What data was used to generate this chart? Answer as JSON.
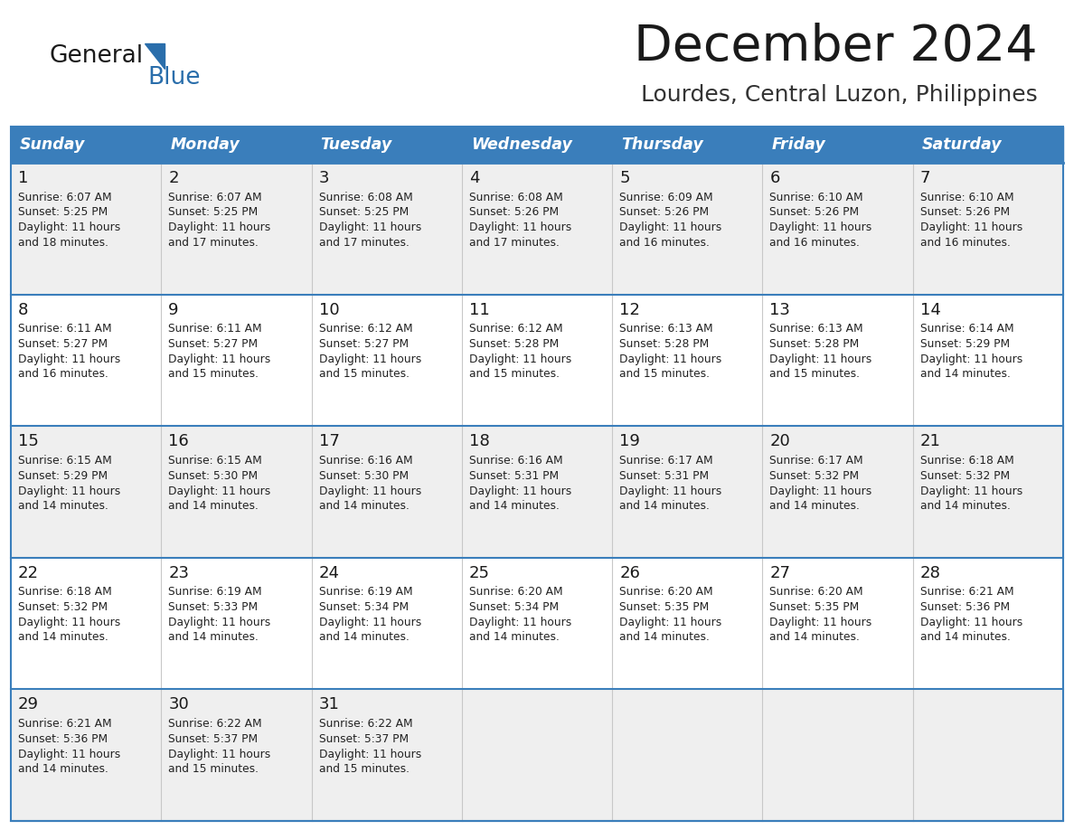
{
  "title": "December 2024",
  "subtitle": "Lourdes, Central Luzon, Philippines",
  "days_of_week": [
    "Sunday",
    "Monday",
    "Tuesday",
    "Wednesday",
    "Thursday",
    "Friday",
    "Saturday"
  ],
  "header_bg": "#3A7EBB",
  "header_text_color": "#FFFFFF",
  "row_bg_odd": "#EFEFEF",
  "row_bg_even": "#FFFFFF",
  "cell_border_color": "#3A7EBB",
  "title_color": "#1a1a1a",
  "subtitle_color": "#333333",
  "logo_general_color": "#1a1a1a",
  "logo_blue_color": "#2A6EAB",
  "calendar": [
    [
      {
        "day": 1,
        "sunrise": "6:07 AM",
        "sunset": "5:25 PM",
        "daylight_min": "18"
      },
      {
        "day": 2,
        "sunrise": "6:07 AM",
        "sunset": "5:25 PM",
        "daylight_min": "17"
      },
      {
        "day": 3,
        "sunrise": "6:08 AM",
        "sunset": "5:25 PM",
        "daylight_min": "17"
      },
      {
        "day": 4,
        "sunrise": "6:08 AM",
        "sunset": "5:26 PM",
        "daylight_min": "17"
      },
      {
        "day": 5,
        "sunrise": "6:09 AM",
        "sunset": "5:26 PM",
        "daylight_min": "16"
      },
      {
        "day": 6,
        "sunrise": "6:10 AM",
        "sunset": "5:26 PM",
        "daylight_min": "16"
      },
      {
        "day": 7,
        "sunrise": "6:10 AM",
        "sunset": "5:26 PM",
        "daylight_min": "16"
      }
    ],
    [
      {
        "day": 8,
        "sunrise": "6:11 AM",
        "sunset": "5:27 PM",
        "daylight_min": "16"
      },
      {
        "day": 9,
        "sunrise": "6:11 AM",
        "sunset": "5:27 PM",
        "daylight_min": "15"
      },
      {
        "day": 10,
        "sunrise": "6:12 AM",
        "sunset": "5:27 PM",
        "daylight_min": "15"
      },
      {
        "day": 11,
        "sunrise": "6:12 AM",
        "sunset": "5:28 PM",
        "daylight_min": "15"
      },
      {
        "day": 12,
        "sunrise": "6:13 AM",
        "sunset": "5:28 PM",
        "daylight_min": "15"
      },
      {
        "day": 13,
        "sunrise": "6:13 AM",
        "sunset": "5:28 PM",
        "daylight_min": "15"
      },
      {
        "day": 14,
        "sunrise": "6:14 AM",
        "sunset": "5:29 PM",
        "daylight_min": "14"
      }
    ],
    [
      {
        "day": 15,
        "sunrise": "6:15 AM",
        "sunset": "5:29 PM",
        "daylight_min": "14"
      },
      {
        "day": 16,
        "sunrise": "6:15 AM",
        "sunset": "5:30 PM",
        "daylight_min": "14"
      },
      {
        "day": 17,
        "sunrise": "6:16 AM",
        "sunset": "5:30 PM",
        "daylight_min": "14"
      },
      {
        "day": 18,
        "sunrise": "6:16 AM",
        "sunset": "5:31 PM",
        "daylight_min": "14"
      },
      {
        "day": 19,
        "sunrise": "6:17 AM",
        "sunset": "5:31 PM",
        "daylight_min": "14"
      },
      {
        "day": 20,
        "sunrise": "6:17 AM",
        "sunset": "5:32 PM",
        "daylight_min": "14"
      },
      {
        "day": 21,
        "sunrise": "6:18 AM",
        "sunset": "5:32 PM",
        "daylight_min": "14"
      }
    ],
    [
      {
        "day": 22,
        "sunrise": "6:18 AM",
        "sunset": "5:32 PM",
        "daylight_min": "14"
      },
      {
        "day": 23,
        "sunrise": "6:19 AM",
        "sunset": "5:33 PM",
        "daylight_min": "14"
      },
      {
        "day": 24,
        "sunrise": "6:19 AM",
        "sunset": "5:34 PM",
        "daylight_min": "14"
      },
      {
        "day": 25,
        "sunrise": "6:20 AM",
        "sunset": "5:34 PM",
        "daylight_min": "14"
      },
      {
        "day": 26,
        "sunrise": "6:20 AM",
        "sunset": "5:35 PM",
        "daylight_min": "14"
      },
      {
        "day": 27,
        "sunrise": "6:20 AM",
        "sunset": "5:35 PM",
        "daylight_min": "14"
      },
      {
        "day": 28,
        "sunrise": "6:21 AM",
        "sunset": "5:36 PM",
        "daylight_min": "14"
      }
    ],
    [
      {
        "day": 29,
        "sunrise": "6:21 AM",
        "sunset": "5:36 PM",
        "daylight_min": "14"
      },
      {
        "day": 30,
        "sunrise": "6:22 AM",
        "sunset": "5:37 PM",
        "daylight_min": "15"
      },
      {
        "day": 31,
        "sunrise": "6:22 AM",
        "sunset": "5:37 PM",
        "daylight_min": "15"
      },
      null,
      null,
      null,
      null
    ]
  ]
}
